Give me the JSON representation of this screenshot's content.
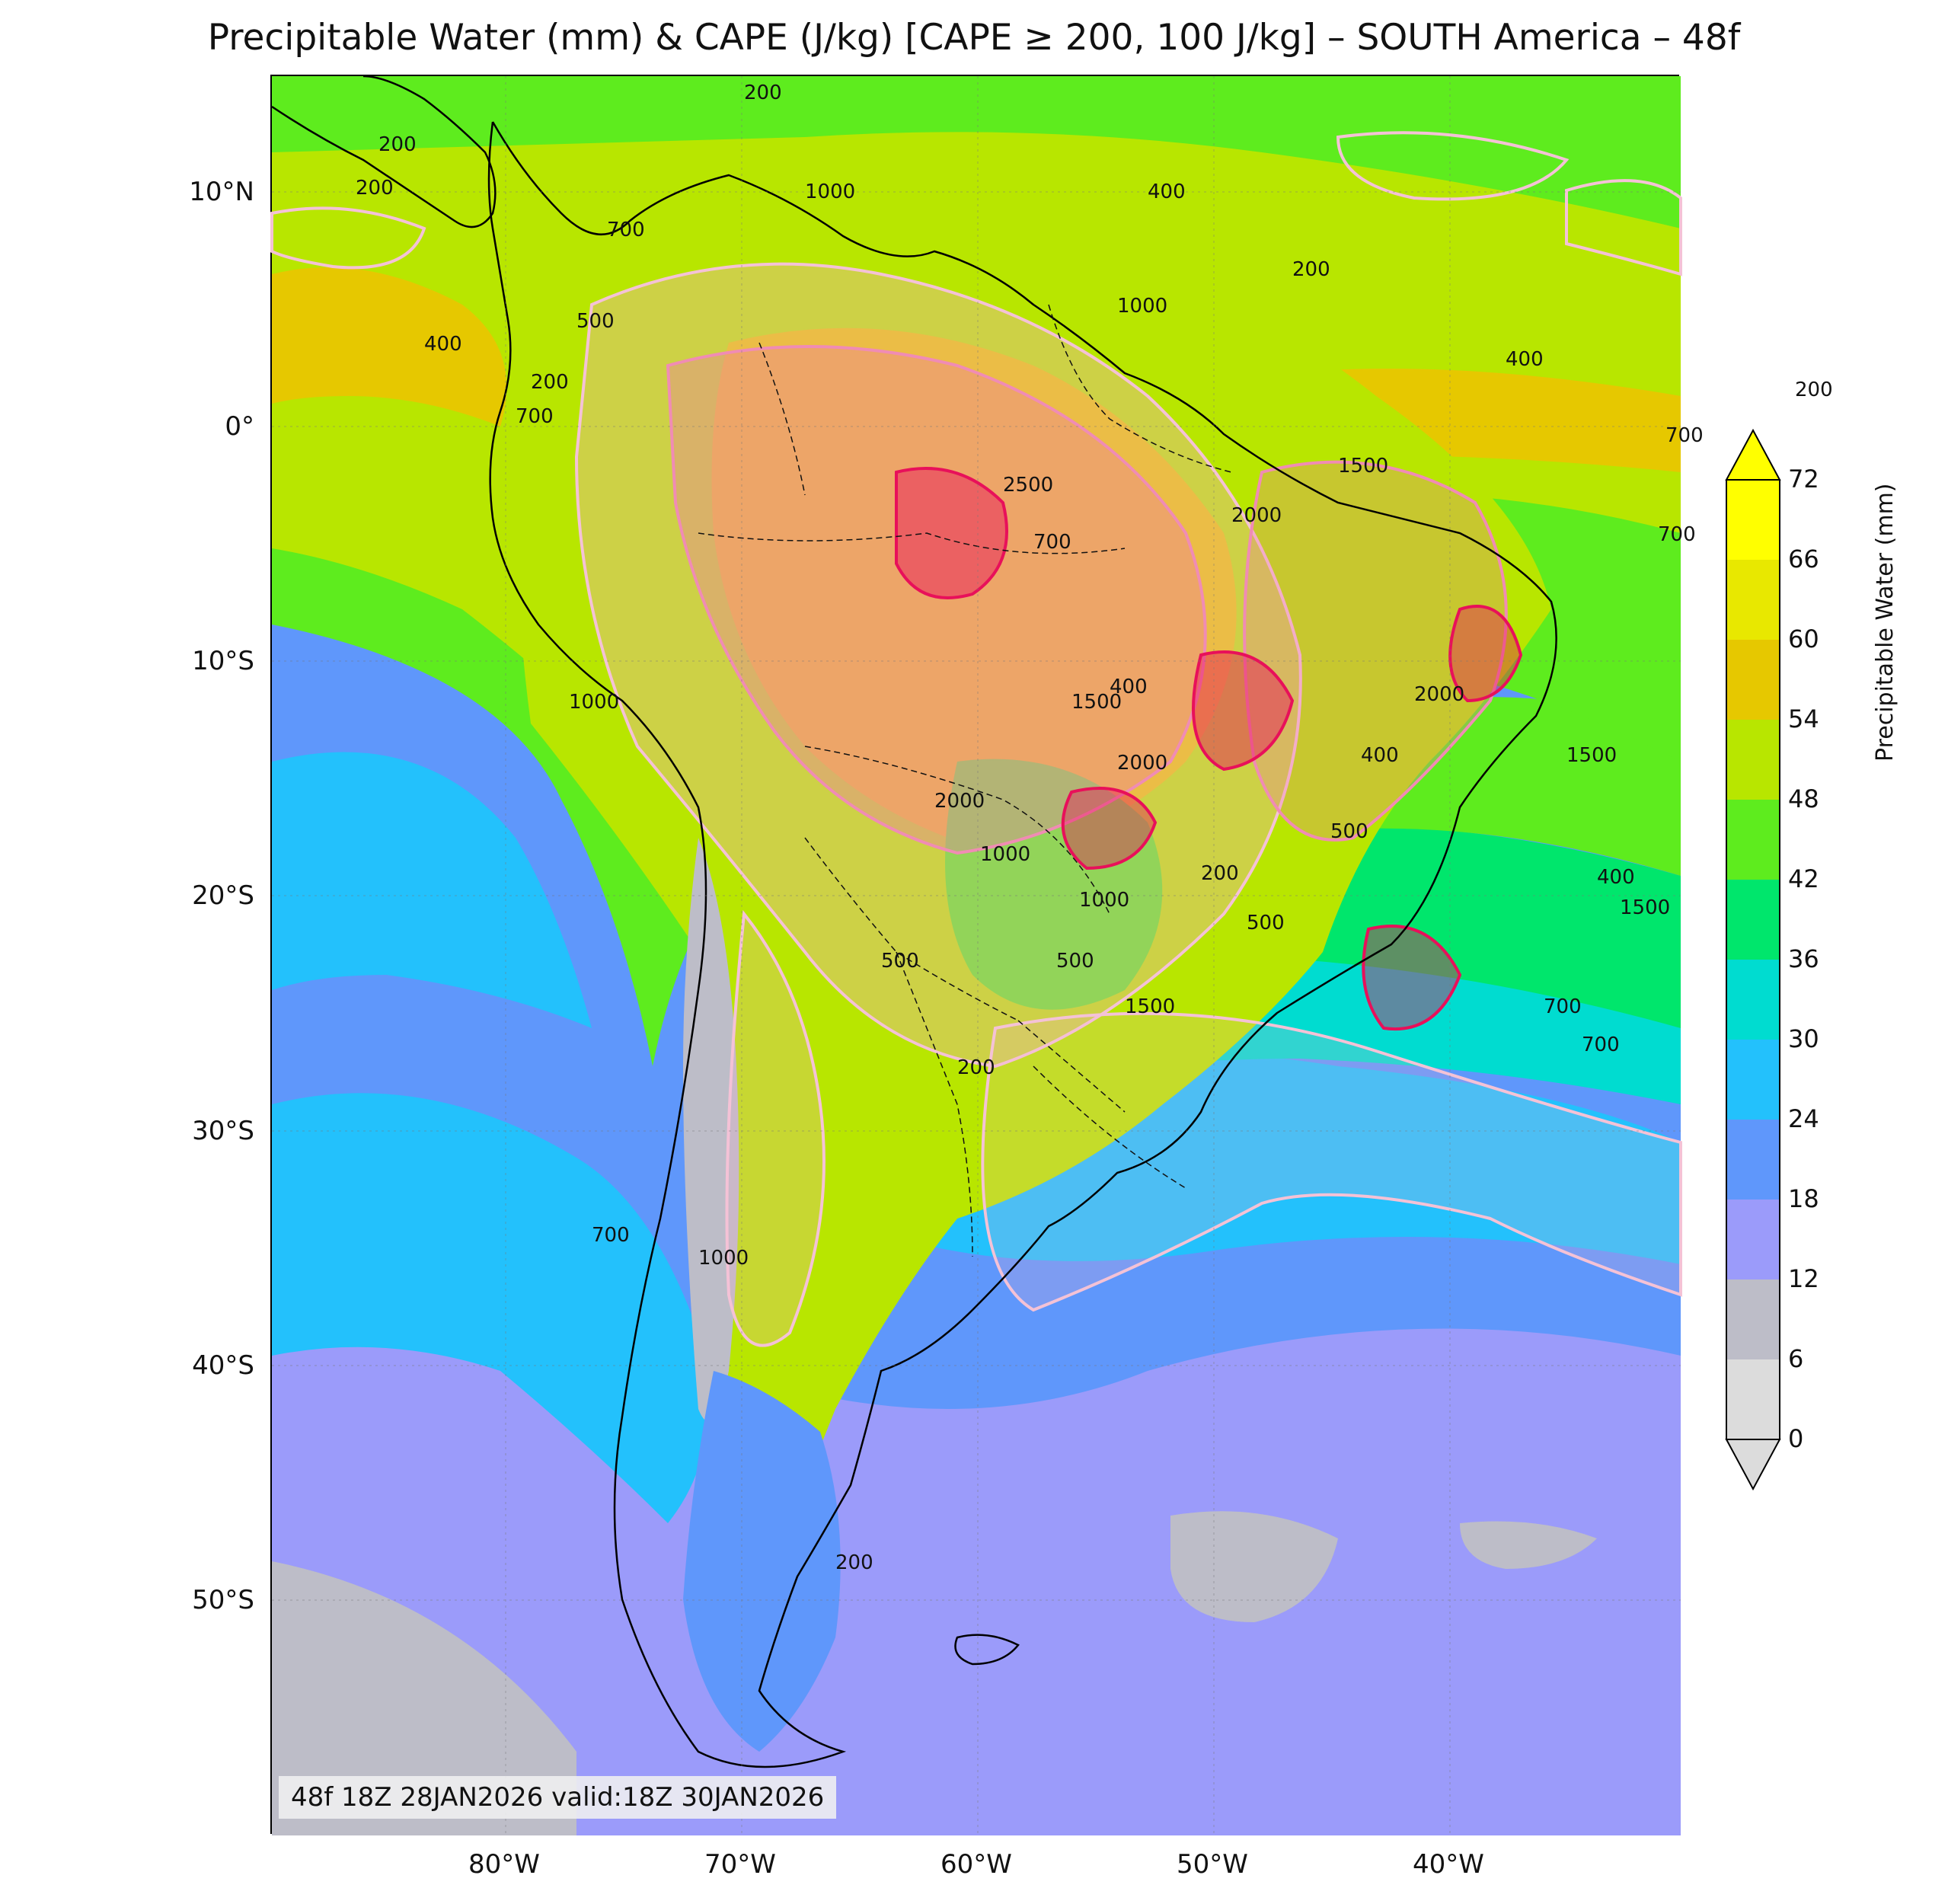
{
  "title": "Precipitable Water (mm) & CAPE (J/kg) [CAPE ≥ 200, 100 J/kg] – SOUTH America – 48f",
  "valid_text": "48f 18Z 28JAN2026 valid:18Z 30JAN2026",
  "lat_labels": [
    "10°N",
    "0°",
    "10°S",
    "20°S",
    "30°S",
    "40°S",
    "50°S"
  ],
  "lon_labels": [
    "80°W",
    "70°W",
    "60°W",
    "50°W",
    "40°W"
  ],
  "colorbar": {
    "label": "Precipitable Water (mm)",
    "ticks": [
      "0",
      "6",
      "12",
      "18",
      "24",
      "30",
      "36",
      "42",
      "48",
      "54",
      "60",
      "66",
      "72"
    ],
    "colors": [
      "#dcdcdc",
      "#bdbdc8",
      "#9b9bfa",
      "#5f97fb",
      "#23c1fc",
      "#00dcd0",
      "#00e66c",
      "#5eec1e",
      "#b8e600",
      "#e6c800",
      "#e8e800",
      "#ffff00"
    ],
    "extend": "both"
  },
  "cape_labels": [
    "200",
    "200",
    "200",
    "200",
    "200",
    "200",
    "200",
    "400",
    "400",
    "400",
    "400",
    "500",
    "500",
    "500",
    "500",
    "700",
    "700",
    "700",
    "700",
    "700",
    "1000",
    "1000",
    "1000",
    "1000",
    "1000",
    "1500",
    "1500",
    "1500",
    "1500",
    "2000",
    "2000",
    "2000",
    "2500",
    "400",
    "700",
    "1000",
    "500",
    "200",
    "700",
    "1500",
    "2000",
    "200",
    "400",
    "700"
  ],
  "colors": {
    "coastline": "#000000",
    "cape_low": "#f4c2d6",
    "cape_mid": "#f08cb4",
    "cape_high": "#e8105a"
  }
}
